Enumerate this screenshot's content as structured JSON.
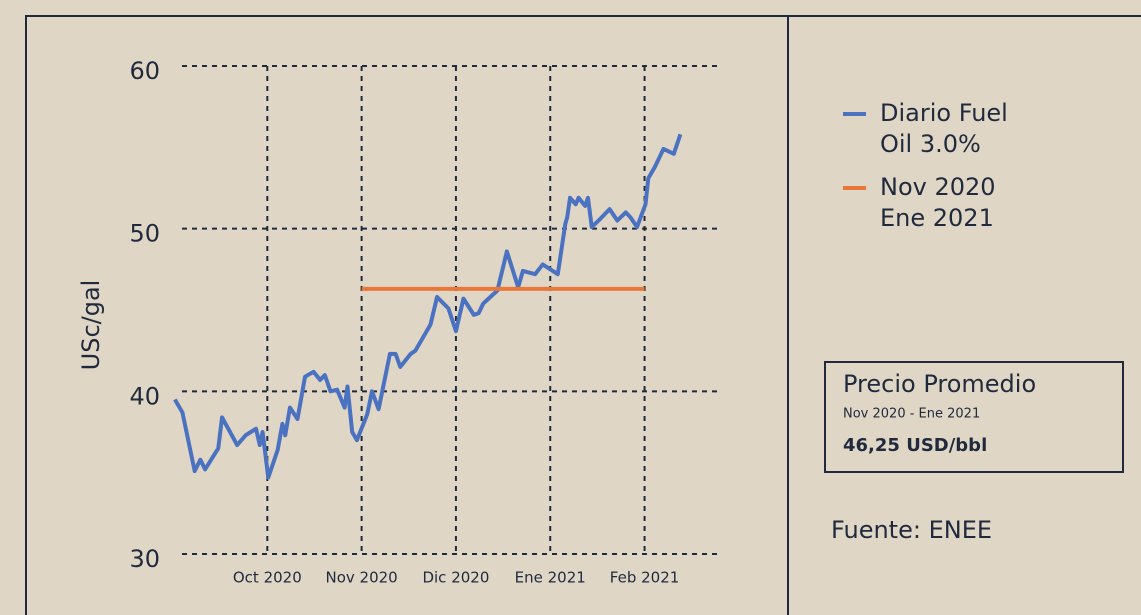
{
  "chart_data": {
    "type": "line",
    "y_label": "USc/gal",
    "x": [
      0.02,
      0.1,
      0.23,
      0.29,
      0.34,
      0.48,
      0.52,
      0.68,
      0.77,
      0.88,
      0.92,
      0.95,
      1.01,
      1.11,
      1.16,
      1.19,
      1.24,
      1.32,
      1.4,
      1.49,
      1.56,
      1.61,
      1.67,
      1.74,
      1.82,
      1.85,
      1.9,
      1.95,
      2.06,
      2.11,
      2.18,
      2.3,
      2.36,
      2.41,
      2.52,
      2.57,
      2.73,
      2.8,
      2.92,
      3.0,
      3.08,
      3.19,
      3.24,
      3.29,
      3.44,
      3.54,
      3.66,
      3.71,
      3.84,
      3.92,
      4.0,
      4.08,
      4.16,
      4.18,
      4.21,
      4.27,
      4.3,
      4.37,
      4.4,
      4.44,
      4.53,
      4.63,
      4.71,
      4.8,
      4.85,
      4.92,
      5.01,
      5.04,
      5.11,
      5.2,
      5.31,
      5.38
    ],
    "series": [
      {
        "name": "Diario Fuel Oil 3.0%",
        "color": "#4a72c0",
        "values": [
          39.5,
          38.7,
          35.1,
          35.8,
          35.2,
          36.5,
          38.4,
          36.7,
          37.3,
          37.7,
          36.7,
          37.5,
          34.7,
          36.4,
          38.0,
          37.3,
          39.0,
          38.3,
          40.9,
          41.2,
          40.7,
          41.0,
          40.0,
          40.1,
          39.0,
          40.3,
          37.5,
          37.0,
          38.6,
          40.0,
          38.9,
          42.3,
          42.3,
          41.5,
          42.3,
          42.5,
          44.1,
          45.8,
          45.1,
          43.7,
          45.7,
          44.7,
          44.8,
          45.4,
          46.2,
          48.6,
          46.4,
          47.4,
          47.2,
          47.8,
          47.5,
          47.2,
          50.3,
          50.7,
          51.9,
          51.5,
          51.9,
          51.4,
          51.9,
          50.1,
          50.6,
          51.2,
          50.5,
          51.0,
          50.7,
          50.1,
          51.5,
          53.1,
          53.8,
          54.9,
          54.6,
          55.8
        ]
      },
      {
        "name": "Nov 2020 Ene 2021",
        "color": "#e8773a",
        "x": [
          2,
          5
        ],
        "values": [
          46.3,
          46.3
        ]
      }
    ],
    "xlim": [
      0,
      5.8
    ],
    "xticks": [
      {
        "value": 1,
        "label": "Oct 2020"
      },
      {
        "value": 2,
        "label": "Nov 2020"
      },
      {
        "value": 3,
        "label": "Dic 2020"
      },
      {
        "value": 4,
        "label": "Ene 2021"
      },
      {
        "value": 5,
        "label": "Feb 2021"
      }
    ],
    "ylim": [
      30,
      60
    ],
    "yticks": [
      30,
      40,
      50,
      60
    ],
    "grid": true,
    "legend": "right",
    "box": {
      "title": "Precio Promedio",
      "period": "Nov 2020 - Ene 2021",
      "value": "46,25 USD/bbl"
    },
    "source": "Fuente: ENEE"
  }
}
